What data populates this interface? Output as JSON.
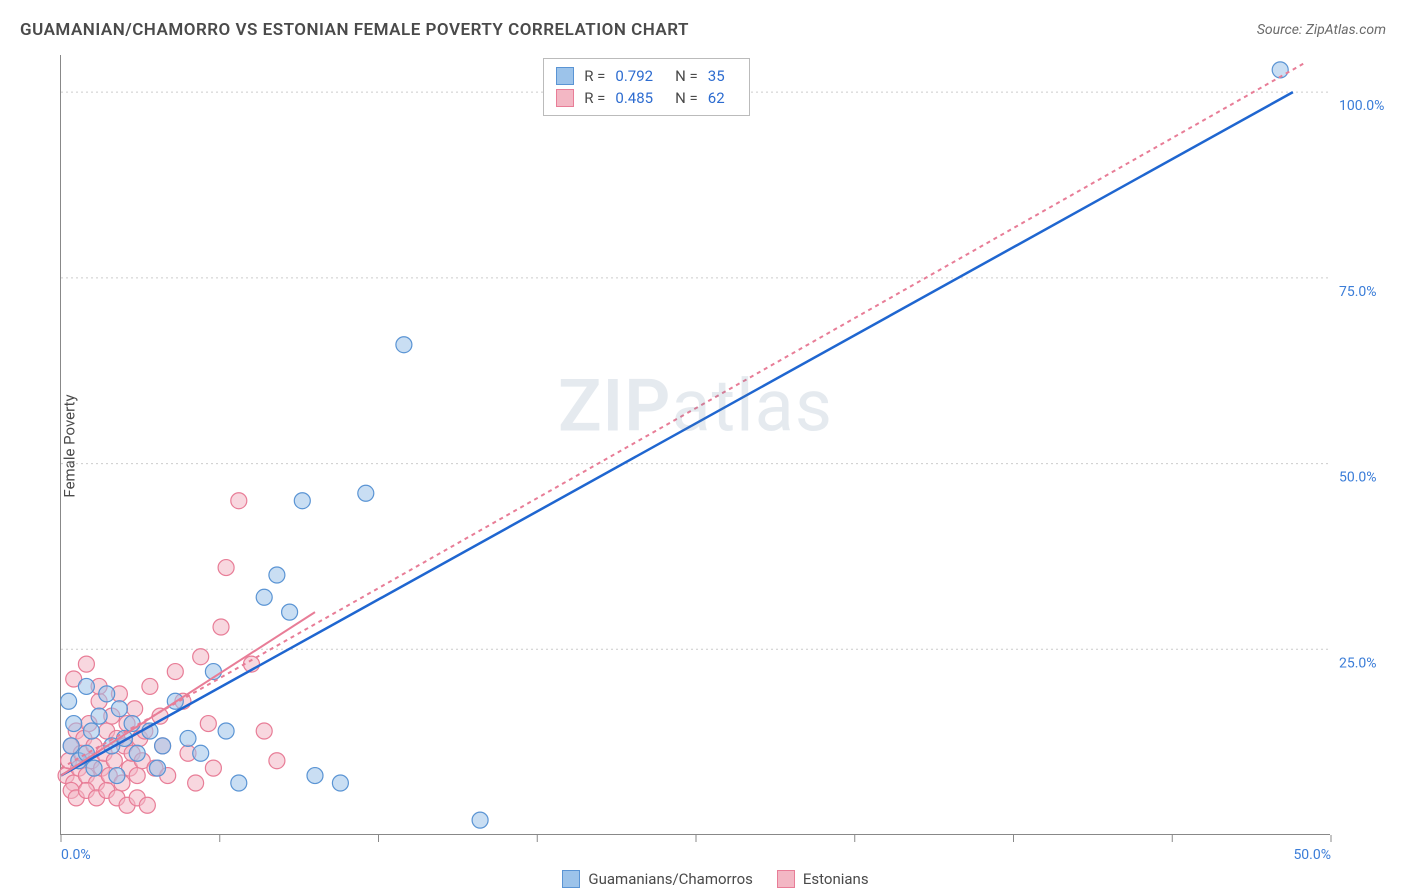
{
  "title": "GUAMANIAN/CHAMORRO VS ESTONIAN FEMALE POVERTY CORRELATION CHART",
  "source": "Source: ZipAtlas.com",
  "ylabel": "Female Poverty",
  "watermark_a": "ZIP",
  "watermark_b": "atlas",
  "chart": {
    "type": "scatter",
    "xlim": [
      0,
      50
    ],
    "ylim": [
      0,
      105
    ],
    "x_ticks": [
      0,
      6.25,
      12.5,
      18.75,
      25,
      31.25,
      37.5,
      43.75,
      50
    ],
    "x_tick_labels": {
      "0": "0.0%",
      "50": "50.0%"
    },
    "y_gridlines": [
      25,
      50,
      75,
      100
    ],
    "y_tick_labels": {
      "25": "25.0%",
      "50": "50.0%",
      "75": "75.0%",
      "100": "100.0%"
    },
    "background_color": "#ffffff",
    "grid_color": "#cccccc",
    "axis_color": "#888888",
    "label_color_axis": "#3b7dd8",
    "series": [
      {
        "name": "Guamanians/Chamorros",
        "legend_label": "Guamanians/Chamorros",
        "marker_fill": "#9cc3ea",
        "marker_stroke": "#5a94d4",
        "marker_opacity": 0.55,
        "marker_radius": 8,
        "line_color": "#1f66d0",
        "line_width": 2.5,
        "line_dash": "none",
        "R": "0.792",
        "N": "35",
        "regression": {
          "x1": 0,
          "y1": 8,
          "x2": 48.5,
          "y2": 100
        },
        "points": [
          [
            0.3,
            18
          ],
          [
            0.4,
            12
          ],
          [
            0.5,
            15
          ],
          [
            0.7,
            10
          ],
          [
            1.0,
            11
          ],
          [
            1.2,
            14
          ],
          [
            1.3,
            9
          ],
          [
            1.5,
            16
          ],
          [
            1.8,
            19
          ],
          [
            2.0,
            12
          ],
          [
            2.2,
            8
          ],
          [
            2.5,
            13
          ],
          [
            2.8,
            15
          ],
          [
            3.0,
            11
          ],
          [
            3.5,
            14
          ],
          [
            4.0,
            12
          ],
          [
            4.5,
            18
          ],
          [
            5.0,
            13
          ],
          [
            5.5,
            11
          ],
          [
            6.0,
            22
          ],
          [
            6.5,
            14
          ],
          [
            7.0,
            7
          ],
          [
            8.0,
            32
          ],
          [
            8.5,
            35
          ],
          [
            9.0,
            30
          ],
          [
            9.5,
            45
          ],
          [
            10.0,
            8
          ],
          [
            11.0,
            7
          ],
          [
            12.0,
            46
          ],
          [
            13.5,
            66
          ],
          [
            16.5,
            2
          ],
          [
            48.0,
            103
          ],
          [
            1.0,
            20
          ],
          [
            2.3,
            17
          ],
          [
            3.8,
            9
          ]
        ]
      },
      {
        "name": "Estonians",
        "legend_label": "Estonians",
        "marker_fill": "#f3b7c4",
        "marker_stroke": "#e87d97",
        "marker_opacity": 0.55,
        "marker_radius": 8,
        "line_color": "#e87d97",
        "line_width": 2,
        "line_dash": "4,4",
        "R": "0.485",
        "N": "62",
        "regression": {
          "x1": 0,
          "y1": 9,
          "x2": 49,
          "y2": 104
        },
        "regression_solid": {
          "x1": 0,
          "y1": 8,
          "x2": 10,
          "y2": 30
        },
        "points": [
          [
            0.2,
            8
          ],
          [
            0.3,
            10
          ],
          [
            0.4,
            12
          ],
          [
            0.5,
            7
          ],
          [
            0.6,
            14
          ],
          [
            0.7,
            9
          ],
          [
            0.8,
            11
          ],
          [
            0.9,
            13
          ],
          [
            1.0,
            8
          ],
          [
            1.1,
            15
          ],
          [
            1.2,
            10
          ],
          [
            1.3,
            12
          ],
          [
            1.4,
            7
          ],
          [
            1.5,
            18
          ],
          [
            1.6,
            9
          ],
          [
            1.7,
            11
          ],
          [
            1.8,
            14
          ],
          [
            1.9,
            8
          ],
          [
            2.0,
            16
          ],
          [
            2.1,
            10
          ],
          [
            2.2,
            13
          ],
          [
            2.3,
            19
          ],
          [
            2.4,
            7
          ],
          [
            2.5,
            12
          ],
          [
            2.6,
            15
          ],
          [
            2.7,
            9
          ],
          [
            2.8,
            11
          ],
          [
            2.9,
            17
          ],
          [
            3.0,
            8
          ],
          [
            3.1,
            13
          ],
          [
            3.2,
            10
          ],
          [
            3.3,
            14
          ],
          [
            3.5,
            20
          ],
          [
            3.7,
            9
          ],
          [
            3.9,
            16
          ],
          [
            4.0,
            12
          ],
          [
            4.2,
            8
          ],
          [
            4.5,
            22
          ],
          [
            4.8,
            18
          ],
          [
            5.0,
            11
          ],
          [
            5.3,
            7
          ],
          [
            5.5,
            24
          ],
          [
            5.8,
            15
          ],
          [
            6.0,
            9
          ],
          [
            6.3,
            28
          ],
          [
            6.5,
            36
          ],
          [
            7.0,
            45
          ],
          [
            7.5,
            23
          ],
          [
            8.0,
            14
          ],
          [
            8.5,
            10
          ],
          [
            0.4,
            6
          ],
          [
            0.6,
            5
          ],
          [
            1.0,
            6
          ],
          [
            1.4,
            5
          ],
          [
            1.8,
            6
          ],
          [
            2.2,
            5
          ],
          [
            2.6,
            4
          ],
          [
            3.0,
            5
          ],
          [
            3.4,
            4
          ],
          [
            0.5,
            21
          ],
          [
            1.0,
            23
          ],
          [
            1.5,
            20
          ]
        ]
      }
    ]
  },
  "stats_legend_labels": {
    "R": "R =",
    "N": "N ="
  },
  "bottom_legend": {
    "items": [
      "Guamanians/Chamorros",
      "Estonians"
    ]
  }
}
